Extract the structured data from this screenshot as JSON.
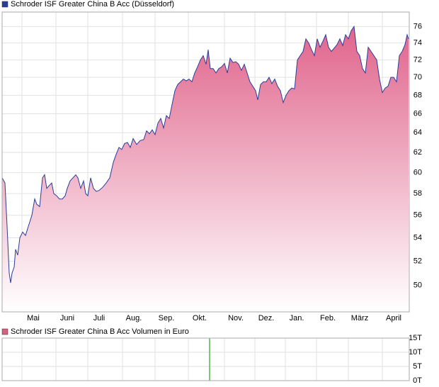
{
  "chart_data": [
    {
      "type": "area",
      "title": "Schroder ISF Greater China B Acc (Düsseldorf)",
      "legend_color": "#2a3d9a",
      "color": "#2a3d9a",
      "fill": "#e0648c",
      "log": true,
      "grid": true,
      "xlim": [
        0,
        575
      ],
      "ylim": [
        47.9,
        77.8
      ],
      "xticks": [
        {
          "value": 44,
          "label": "Mai"
        },
        {
          "value": 92,
          "label": "Juni"
        },
        {
          "value": 137,
          "label": "Juli"
        },
        {
          "value": 186,
          "label": "Aug."
        },
        {
          "value": 232,
          "label": "Sep."
        },
        {
          "value": 279,
          "label": "Okt."
        },
        {
          "value": 330,
          "label": "Nov."
        },
        {
          "value": 373,
          "label": "Dez."
        },
        {
          "value": 416,
          "label": "Jan."
        },
        {
          "value": 460,
          "label": "Feb."
        },
        {
          "value": 505,
          "label": "März"
        },
        {
          "value": 553,
          "label": "April"
        }
      ],
      "yticks": [
        50,
        52,
        54,
        56,
        58,
        60,
        62,
        64,
        66,
        68,
        70,
        72,
        74,
        76
      ],
      "x": [
        0,
        4,
        7,
        10,
        12,
        14,
        17,
        19,
        22,
        25,
        29,
        33,
        37,
        42,
        46,
        49,
        53,
        57,
        60,
        63,
        67,
        70,
        73,
        77,
        81,
        85,
        89,
        92,
        96,
        100,
        104,
        107,
        111,
        115,
        118,
        121,
        125,
        129,
        133,
        137,
        142,
        147,
        152,
        157,
        161,
        165,
        169,
        173,
        177,
        181,
        185,
        190,
        195,
        200,
        204,
        208,
        212,
        216,
        220,
        224,
        228,
        232,
        236,
        240,
        244,
        248,
        252,
        256,
        260,
        264,
        268,
        272,
        276,
        280,
        284,
        288,
        291,
        294,
        298,
        302,
        306,
        310,
        314,
        318,
        322,
        326,
        330,
        334,
        338,
        342,
        346,
        350,
        354,
        358,
        361,
        365,
        369,
        373,
        377,
        381,
        385,
        389,
        393,
        397,
        401,
        405,
        409,
        413,
        417,
        421,
        425,
        429,
        433,
        437,
        441,
        445,
        449,
        453,
        457,
        461,
        465,
        469,
        473,
        477,
        481,
        485,
        489,
        493,
        497,
        501,
        505,
        509,
        513,
        517,
        521,
        525,
        529,
        533,
        537,
        541,
        545,
        549,
        553,
        557,
        561,
        565,
        569,
        572,
        574
      ],
      "values": [
        59.5,
        59,
        55,
        51,
        50.2,
        51,
        51.5,
        53,
        52.5,
        54,
        54.5,
        54.2,
        55,
        56,
        57.5,
        57,
        56.8,
        59.5,
        59.8,
        58.5,
        58.8,
        59,
        58,
        57.8,
        57.5,
        57.5,
        57.8,
        58.5,
        59.2,
        59.5,
        59.8,
        59.5,
        58.5,
        59.2,
        58,
        57.8,
        59.5,
        58.5,
        58.2,
        58.3,
        58.6,
        59,
        59.5,
        61,
        61.8,
        62.5,
        62.3,
        62.9,
        63,
        62.5,
        63.4,
        62.8,
        63.2,
        63.3,
        64.2,
        63.9,
        64.3,
        63.8,
        65,
        65.5,
        64.5,
        65.8,
        65.5,
        67,
        68.5,
        69.2,
        69.5,
        69.8,
        69.6,
        69.8,
        69.5,
        70.5,
        71.2,
        72,
        72.5,
        71.5,
        73.2,
        71,
        71,
        70.5,
        71,
        71.2,
        71.6,
        70.5,
        72.2,
        71.7,
        71.8,
        71.5,
        70.8,
        71.5,
        70.5,
        69.5,
        69,
        68.5,
        67.5,
        69.2,
        69.5,
        69.5,
        70,
        69.3,
        69.8,
        69,
        68.5,
        67.2,
        68,
        68.5,
        68.8,
        68.7,
        72,
        72.5,
        73,
        74.5,
        74,
        73.2,
        72.5,
        74.5,
        73.5,
        74.2,
        75,
        73.5,
        73,
        73.4,
        73.8,
        74.5,
        73.7,
        75,
        74.5,
        75.5,
        76,
        73,
        72.5,
        71,
        70.5,
        73.5,
        73,
        72.5,
        72,
        69.8,
        68.3,
        68.8,
        69,
        70,
        70,
        69.5,
        72.5,
        73,
        73.8,
        75,
        74.5
      ]
    },
    {
      "type": "bar",
      "title": "Schroder ISF Greater China B Acc Volumen in Euro",
      "legend_color": "#d6607f",
      "color": "#4cb84c",
      "grid": true,
      "xlim": [
        0,
        575
      ],
      "ylim": [
        0,
        15000
      ],
      "xticks": [
        44,
        92,
        137,
        186,
        232,
        279,
        330,
        373,
        416,
        460,
        505,
        553
      ],
      "yticks": [
        {
          "value": 0,
          "label": "0T"
        },
        {
          "value": 5000,
          "label": "5T"
        },
        {
          "value": 10000,
          "label": "10T"
        },
        {
          "value": 15000,
          "label": "15T"
        }
      ],
      "x": [
        293
      ],
      "values": [
        15000
      ]
    }
  ]
}
